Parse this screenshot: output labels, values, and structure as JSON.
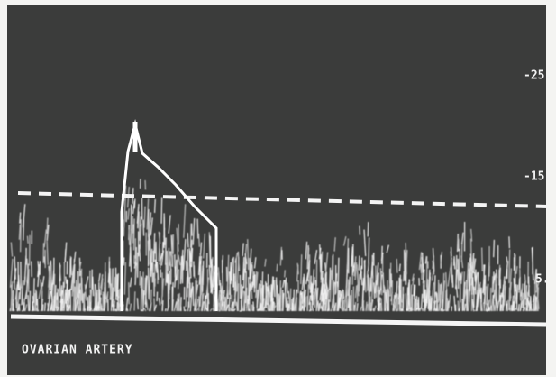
{
  "scale_labels": [
    "-25.",
    "-15.",
    "5."
  ],
  "caption": "OVARIAN ARTERY"
}
